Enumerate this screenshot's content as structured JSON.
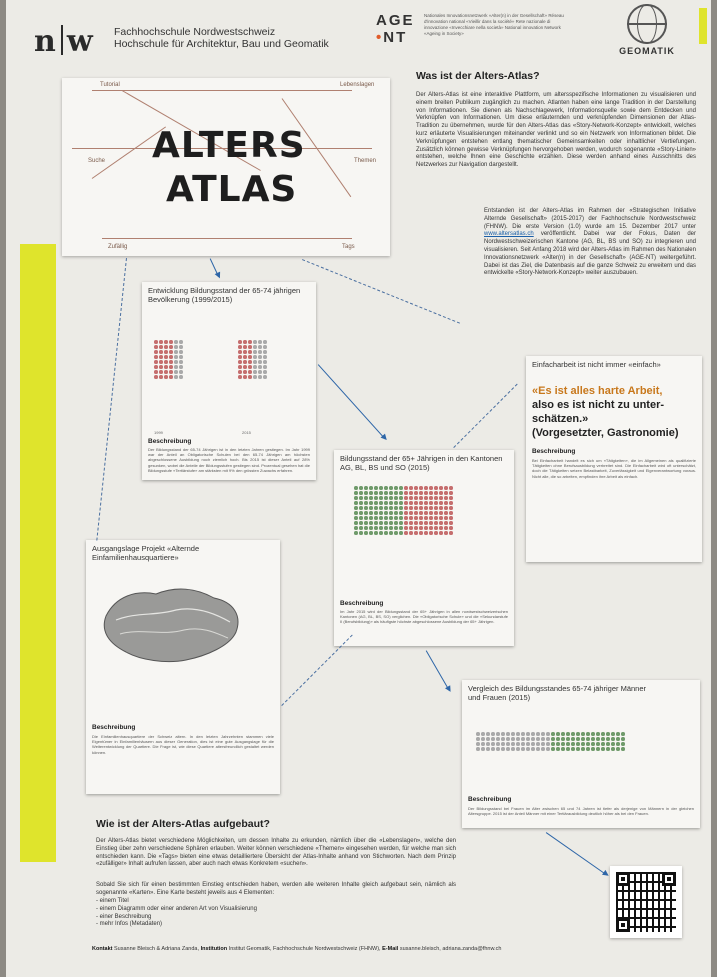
{
  "header": {
    "logo": "n|w",
    "school_line1": "Fachhochschule Nordwestschweiz",
    "school_line2": "Hochschule für Architektur, Bau und Geomatik",
    "agent_line1": "AGE",
    "agent_line2": "NT",
    "agent_text": "Nationales Innovationsnetzwerk «Alter(n) in der Gesellschaft» Réseau d'innovation national «Vieillir dans la société» Rete nazionale di innovazione «Invecchiare nella società» National innovation Network «Ageing in Society»",
    "geomatik": "GEOMATIK"
  },
  "title_panel": {
    "line1": "ALTERS",
    "line2": "ATLAS",
    "labels": [
      "Tutorial",
      "Lebenslagen",
      "Suche",
      "Themen",
      "Zufällig",
      "Tags"
    ]
  },
  "intro": {
    "title": "Was ist der Alters-Atlas?",
    "p1": "Der Alters-Atlas ist eine interaktive Plattform, um altersspezifische Informationen zu visualisieren und einem breiten Publikum zugänglich zu machen. Atlanten haben eine lange Tradition in der Darstellung von Informationen. Sie dienen als Nachschlagewerk, Informationsquelle sowie dem Entdecken und Verknüpfen von Informationen. Um diese erläuternden und verknüpfenden Dimensionen der Atlas-Tradition zu übernehmen, wurde für den Alters-Atlas das «Story-Network-Konzept» entwickelt, welches kurz erläuterte Visualisierungen miteinander verlinkt und so ein Netzwerk von Informationen bildet. Die Verknüpfungen entstehen entlang thematischer Gemeinsamkeiten oder inhaltlicher Vertiefungen. Zusätzlich können gewisse Verknüpfungen hervorgehoben werden, wodurch sogenannte «Story-Linien» entstehen, welche Ihnen eine Geschichte erzählen. Diese werden anhand eines Ausschnitts des Netzwerkes zur Navigation dargestellt.",
    "p2_before": "Entstanden ist der Alters-Atlas im Rahmen der «Strategischen Initiative Alternde Gesellschaft» (2015-2017) der Fachhochschule Nordwestschweiz (FHNW). Die erste Version (1.0) wurde am 15. Dezember 2017 unter ",
    "p2_link": "www.altersatlas.ch",
    "p2_after": " veröffentlicht. Dabei war der Fokus, Daten der Nordwestschweizerischen Kantone (AG, BL, BS und SO) zu integrieren und visualisieren. Seit Anfang 2018 wird der Alters-Atlas im Rahmen des Nationalen Innovationsnetzwerk «Alter(n) in der Gesellschaft» (AGE-NT) weitergeführt. Dabei ist das Ziel, die Datenbasis auf die ganze Schweiz zu erweitern und das entwickelte «Story-Network-Konzept» weiter auszubauen."
  },
  "card1": {
    "title": "Entwicklung Bildungsstand der 65-74 jährigen Bevölkerung (1999/2015)",
    "axis_left": "1999",
    "axis_right": "2015",
    "head": "Beschreibung",
    "text": "Der Bildungsstand der 65-74 Jährigen ist in den letzten Jahren gestiegen. Im Jahr 1999 war der Anteil an Obligatorische Schulen bei den 65-74 Jährigen am höchsten abgeschlossene Ausbildung noch ziemlich hoch. Bis 2015 ist dieser Anteil auf 28% gesunken, wobei die Anteile der Bildungsstufen gestiegen sind. Prozentual gesehen hat die Bildungsstufe «Tertiärstufe» am stärksten mit 9% den grössten Zuwachs erfahren."
  },
  "card2": {
    "title": "Einfacharbeit ist nicht immer «einfach»",
    "quote_orange": "«Es ist alles harte Arbeit,",
    "quote_rest1": "also es ist nicht zu unter-",
    "quote_rest2": "schätzen.»",
    "quote_rest3": "(Vorgesetzter, Gastronomie)",
    "head": "Beschreibung",
    "text": "Bei Einfacharbeit handelt es sich um «Tätigkeiten», die im Allgemeinen als qualifizierte Tätigkeiten ohne Berufsausbildung verbreitet sind. Die Einfacharbeit wird oft unterschätzt, doch die Tätigkeiten setzen Belastbarkeit, Zuverlässigkeit und Eigenverantwortung voraus. Nicht alle, die so arbeiten, empfinden ihre Arbeit als einfach."
  },
  "card3": {
    "title": "Bildungsstand der 65+ Jährigen in den Kantonen AG, BL, BS und SO (2015)",
    "head": "Beschreibung",
    "text": "Im Jahr 2015 wird der Bildungsstand der 65+ Jährigen in allen nordwestschweizerischen Kantonen (AG, BL, BS, SO) verglichen. Die «Obligatorische Schule» und die «Sekundarstufe II (Berufsbildung)» als häufigste höchste abgeschlossene Ausbildung der 65+ Jährigen."
  },
  "card4": {
    "title": "Ausgangslage Projekt «Alternde Einfamilienhausquartiere»",
    "head": "Beschreibung",
    "text": "Die Einfamilienhausquartiere der Schweiz altern. In den letzten Jahrzehnten stammen viele Eigentümer in Einfamilienhäusern aus dieser Generation, dies ist eine gute Ausgangslage für die Weiterentwicklung der Quartiere. Die Frage ist, wie diese Quartiere altersfreundlich gestaltet werden können."
  },
  "card5": {
    "title": "Vergleich des Bildungsstandes 65-74 jähriger Männer und Frauen (2015)",
    "head": "Beschreibung",
    "text": "Der Bildungsstand bei Frauen im Alter zwischen 65 und 74 Jahren ist tiefer als derjenige von Männern in der gleichen Altersgruppe. 2015 ist der Anteil Männer mit einer Tertiärausbildung deutlich höher als bei den Frauen."
  },
  "usage": {
    "title": "Wie ist der Alters-Atlas aufgebaut?",
    "p1": "Der Alters-Atlas bietet verschiedene Möglichkeiten, um dessen Inhalte zu erkunden, nämlich über die «Lebenslagen», welche den Einstieg über zehn verschiedene Sphären erlauben. Weiter können verschiedene «Themen» eingesehen werden, für welche man sich entschieden kann. Die «Tags» bieten eine etwas detailliertere Übersicht der Atlas-Inhalte anhand von Stichworten. Nach dem Prinzip «zufälliger» Inhalt aufrufen lassen, aber auch nach etwas Konkretem «suchen».",
    "p2": "Sobald Sie sich für einen bestimmten Einstieg entschieden haben, werden alle weiteren Inhalte gleich aufgebaut sein, nämlich als sogenannte «Karten». Eine Karte besteht jeweils aus 4 Elementen:",
    "items": [
      "- einem Titel",
      "- einem Diagramm oder einer anderen Art von Visualisierung",
      "- einer Beschreibung",
      "- mehr Infos (Metadaten)"
    ]
  },
  "footer": {
    "contact_label": "Kontakt",
    "contact": "Susanne Bleisch & Adriana Zanda,",
    "institution_label": "Institution",
    "institution": "Institut Geomatik, Fachhochschule Nordwestschweiz (FHNW),",
    "email_label": "E-Mail",
    "email": "susanne.bleisch, adriana.zanda@fhnw.ch"
  },
  "colors": {
    "accent_yellow": "#dfe42c",
    "arrow_blue": "#2e66a8",
    "quote_orange": "#c8781c"
  }
}
